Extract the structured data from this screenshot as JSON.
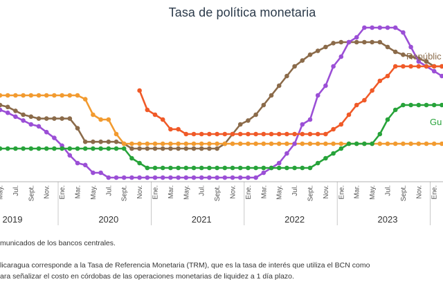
{
  "chart_data": {
    "type": "line",
    "title": "Tasa de política monetaria",
    "month_labels": [
      "May.",
      "Jul.",
      "Sept.",
      "Nov.",
      "Ene.",
      "Mar.",
      "May.",
      "Jul.",
      "Sept.",
      "Nov.",
      "Ene.",
      "Mar.",
      "May.",
      "Jul.",
      "Sept.",
      "Nov.",
      "Ene.",
      "Mar.",
      "May.",
      "Jul.",
      "Sept.",
      "Nov.",
      "Ene.",
      "Mar.",
      "May.",
      "Jul.",
      "Sept.",
      "Nov.",
      "Ene."
    ],
    "year_labels": [
      "2019",
      "2020",
      "2021",
      "2022",
      "2023"
    ],
    "x_start_month": "2019-05",
    "x_end_month": "2024-02",
    "series": [
      {
        "name": "",
        "color": "#8b6b4a",
        "values": [
          5.0,
          4.9,
          4.7,
          4.5,
          4.4,
          4.3,
          4.3,
          4.3,
          4.3,
          4.3,
          3.8,
          3.1,
          3.1,
          3.1,
          3.1,
          3.1,
          3.0,
          2.75,
          2.75,
          2.75,
          2.75,
          2.75,
          2.75,
          2.75,
          2.75,
          2.75,
          2.75,
          2.75,
          2.75,
          3.0,
          3.5,
          4.0,
          4.2,
          4.5,
          5.0,
          5.5,
          6.0,
          6.5,
          7.0,
          7.3,
          7.6,
          7.8,
          8.0,
          8.2,
          8.25,
          8.25,
          8.25,
          8.25,
          8.25,
          8.25,
          8.0,
          7.75,
          7.6,
          7.5,
          7.4,
          7.25,
          7.0,
          7.0,
          7.0,
          7.0,
          7.0,
          7.0,
          7.0
        ]
      },
      {
        "name": "",
        "color": "#f29b30",
        "values": [
          5.5,
          5.5,
          5.5,
          5.5,
          5.5,
          5.5,
          5.5,
          5.5,
          5.5,
          5.5,
          5.5,
          5.3,
          4.5,
          4.25,
          4.25,
          3.5,
          3.0,
          3.0,
          3.0,
          3.0,
          3.0,
          3.0,
          3.0,
          3.0,
          3.0,
          3.0,
          3.0,
          3.0,
          3.0,
          3.0,
          3.0,
          3.0,
          3.0,
          3.0,
          3.0,
          3.0,
          3.0,
          3.0,
          3.0,
          3.0,
          3.0,
          3.0,
          3.0,
          3.0,
          3.0,
          3.0,
          3.0,
          3.0,
          3.0,
          3.0,
          3.0,
          3.0,
          3.0,
          3.0,
          3.0,
          3.0,
          3.0,
          3.0,
          3.0,
          3.0,
          3.0,
          3.0,
          3.0
        ]
      },
      {
        "name": "",
        "color": "#9b4fd6",
        "values": [
          4.75,
          4.6,
          4.4,
          4.2,
          4.0,
          3.9,
          3.6,
          3.3,
          2.9,
          2.4,
          2.0,
          1.9,
          1.5,
          1.5,
          1.25,
          1.25,
          1.25,
          1.25,
          1.25,
          1.25,
          1.25,
          1.25,
          1.25,
          1.25,
          1.25,
          1.25,
          1.25,
          1.25,
          1.25,
          1.25,
          1.25,
          1.25,
          1.25,
          1.25,
          1.5,
          1.75,
          2.0,
          2.5,
          3.0,
          4.0,
          4.25,
          5.5,
          6.0,
          7.0,
          7.5,
          8.25,
          8.5,
          9.0,
          9.0,
          9.0,
          9.0,
          9.0,
          8.75,
          8.0,
          7.25,
          7.0,
          6.75,
          6.5,
          6.4,
          6.3,
          6.25,
          6.0,
          6.0
        ]
      },
      {
        "name": "",
        "color": "#f05a28",
        "values": [
          null,
          null,
          null,
          null,
          null,
          null,
          null,
          null,
          null,
          null,
          null,
          null,
          null,
          null,
          null,
          null,
          null,
          null,
          5.75,
          4.75,
          4.5,
          4.25,
          3.75,
          3.75,
          3.5,
          3.5,
          3.5,
          3.5,
          3.5,
          3.5,
          3.5,
          3.5,
          3.5,
          3.5,
          3.5,
          3.5,
          3.5,
          3.5,
          3.5,
          3.5,
          3.5,
          3.5,
          3.5,
          3.75,
          4.0,
          4.5,
          5.0,
          5.25,
          5.75,
          6.25,
          6.5,
          7.0,
          7.0,
          7.0,
          7.0,
          7.0,
          7.0,
          7.0,
          7.0,
          7.0,
          7.0,
          7.0,
          7.0
        ]
      },
      {
        "name": "Gu",
        "color": "#27a33a",
        "values": [
          2.75,
          2.75,
          2.75,
          2.75,
          2.75,
          2.75,
          2.75,
          2.75,
          2.75,
          2.75,
          2.75,
          2.75,
          2.75,
          2.75,
          2.75,
          2.75,
          2.75,
          2.25,
          2.0,
          1.75,
          1.75,
          1.75,
          1.75,
          1.75,
          1.75,
          1.75,
          1.75,
          1.75,
          1.75,
          1.75,
          1.75,
          1.75,
          1.75,
          1.75,
          1.75,
          1.75,
          1.75,
          1.75,
          1.75,
          1.75,
          1.75,
          2.0,
          2.25,
          2.5,
          2.75,
          3.0,
          3.0,
          3.0,
          3.0,
          3.5,
          4.25,
          4.75,
          5.0,
          5.0,
          5.0,
          5.0,
          5.0,
          5.0,
          5.0,
          5.0,
          5.0,
          5.0,
          5.0
        ]
      }
    ],
    "top_label": "Repúblic",
    "legend": "none"
  },
  "notes": {
    "line1": "municados de los bancos centrales.",
    "line2a": "licaragua corresponde a la Tasa de Referencia Monetaria (TRM), que es la tasa de interés que utiliza el BCN como",
    "line2b": "ara señalizar el costo en córdobas de las operaciones monetarias de liquidez a 1 día plazo."
  }
}
